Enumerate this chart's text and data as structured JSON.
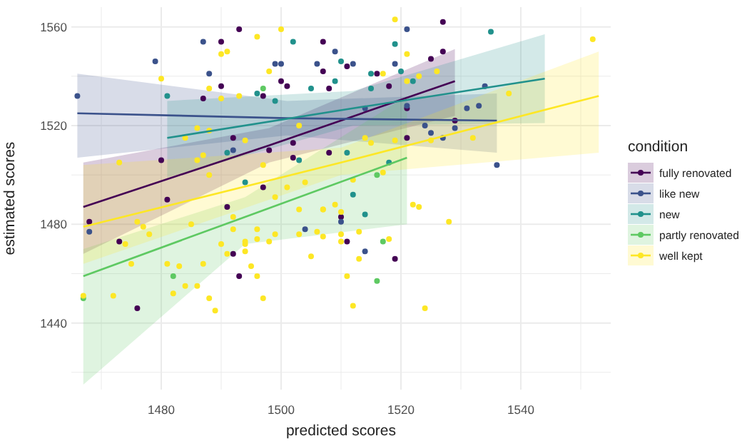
{
  "chart_data": {
    "type": "scatter",
    "xlabel": "predicted  scores",
    "ylabel": "estimated  scores",
    "legend_title": "condition",
    "legend": "right",
    "grid": true,
    "xlim": [
      1465,
      1555
    ],
    "ylim": [
      1413,
      1568
    ],
    "xticks": [
      {
        "value": 1470,
        "label": null
      },
      1480,
      {
        "value": 1490,
        "label": null
      },
      1500,
      {
        "value": 1510,
        "label": null
      },
      1520,
      {
        "value": 1530,
        "label": null
      },
      1540,
      {
        "value": 1550,
        "label": null
      }
    ],
    "yticks": [
      {
        "value": 1420,
        "label": null
      },
      1440,
      {
        "value": 1460,
        "label": null
      },
      1480,
      {
        "value": 1500,
        "label": null
      },
      1520,
      {
        "value": 1540,
        "label": null
      },
      1560
    ],
    "series": [
      {
        "type": "line",
        "color": "#440154",
        "x": [
          1467,
          1498,
          1529
        ],
        "values": [
          1487,
          1512,
          1538
        ],
        "lower": [
          1468,
          1505,
          1524
        ],
        "upper": [
          1505,
          1519,
          1551
        ]
      },
      {
        "type": "line",
        "color": "#3b528b",
        "x": [
          1466,
          1501,
          1536
        ],
        "values": [
          1525,
          1523,
          1522
        ],
        "lower": [
          1507,
          1516,
          1509
        ],
        "upper": [
          1541,
          1530,
          1533
        ]
      },
      {
        "type": "line",
        "color": "#21918c",
        "x": [
          1481,
          1512,
          1544
        ],
        "values": [
          1515,
          1527,
          1539
        ],
        "lower": [
          1499,
          1520,
          1521
        ],
        "upper": [
          1530,
          1534,
          1557
        ]
      },
      {
        "type": "line",
        "color": "#5ec962",
        "x": [
          1467,
          1494,
          1521
        ],
        "values": [
          1459,
          1483,
          1507
        ],
        "lower": [
          1415,
          1472,
          1480
        ],
        "upper": [
          1470,
          1491,
          1532
        ]
      },
      {
        "type": "line",
        "color": "#fde725",
        "x": [
          1467,
          1510,
          1553
        ],
        "values": [
          1479,
          1505,
          1532
        ],
        "lower": [
          1464,
          1500,
          1509
        ],
        "upper": [
          1504,
          1511,
          1550
        ]
      },
      {
        "type": "scatter",
        "name": "fully renovated",
        "color": "#440154",
        "marker": "circle",
        "x": [
          1490,
          1490,
          1493,
          1487,
          1497,
          1500,
          1501,
          1507,
          1507,
          1511,
          1508,
          1480,
          1492,
          1481,
          1497,
          1498,
          1502,
          1502,
          1508,
          1510,
          1527,
          1527,
          1525,
          1516,
          1518,
          1521,
          1529,
          1521,
          1468,
          1476,
          1473,
          1491,
          1492,
          1493,
          1511,
          1519
        ],
        "values": [
          1554,
          1536,
          1559,
          1531,
          1532,
          1538,
          1536,
          1554,
          1542,
          1544,
          1535,
          1506,
          1515,
          1490,
          1495,
          1510,
          1513,
          1507,
          1509,
          1483,
          1562,
          1550,
          1547,
          1541,
          1536,
          1527,
          1522,
          1515,
          1481,
          1446,
          1473,
          1487,
          1468,
          1459,
          1473,
          1466
        ]
      },
      {
        "type": "scatter",
        "name": "like new",
        "color": "#3b528b",
        "marker": "circle",
        "x": [
          1466,
          1479,
          1487,
          1488,
          1499,
          1500,
          1492,
          1506,
          1509,
          1512,
          1521,
          1519,
          1534,
          1514,
          1521,
          1531,
          1533,
          1524,
          1529,
          1525,
          1527,
          1536,
          1468,
          1504,
          1510,
          1514
        ],
        "values": [
          1532,
          1546,
          1554,
          1541,
          1545,
          1545,
          1510,
          1545,
          1550,
          1545,
          1559,
          1545,
          1536,
          1527,
          1528,
          1527,
          1528,
          1520,
          1519,
          1517,
          1515,
          1504,
          1477,
          1478,
          1481,
          1469
        ]
      },
      {
        "type": "scatter",
        "name": "new",
        "color": "#21918c",
        "marker": "circle",
        "x": [
          1481,
          1496,
          1499,
          1502,
          1505,
          1510,
          1509,
          1515,
          1491,
          1494,
          1503,
          1512,
          1511,
          1535,
          1519,
          1520,
          1515,
          1522,
          1518,
          1514
        ],
        "values": [
          1532,
          1533,
          1530,
          1554,
          1535,
          1546,
          1538,
          1535,
          1509,
          1497,
          1506,
          1492,
          1509,
          1558,
          1553,
          1542,
          1541,
          1538,
          1505,
          1484
        ]
      },
      {
        "type": "scatter",
        "name": "partly renovated",
        "color": "#5ec962",
        "marker": "circle",
        "x": [
          1497,
          1516,
          1467,
          1482,
          1516,
          1517
        ],
        "values": [
          1535,
          1500,
          1450,
          1459,
          1457,
          1473
        ]
      },
      {
        "type": "scatter",
        "name": "well kept",
        "color": "#fde725",
        "marker": "circle",
        "x": [
          1480,
          1490,
          1491,
          1496,
          1500,
          1498,
          1488,
          1490,
          1493,
          1473,
          1484,
          1486,
          1488,
          1487,
          1486,
          1488,
          1494,
          1497,
          1501,
          1504,
          1503,
          1509,
          1510,
          1512,
          1514,
          1492,
          1499,
          1507,
          1519,
          1552,
          1521,
          1523,
          1526,
          1517,
          1521,
          1538,
          1532,
          1519,
          1525,
          1515,
          1517,
          1522,
          1523,
          1528,
          1467,
          1472,
          1474,
          1475,
          1477,
          1478,
          1476,
          1481,
          1482,
          1484,
          1483,
          1485,
          1486,
          1487,
          1488,
          1489,
          1490,
          1491,
          1492,
          1494,
          1494,
          1494,
          1495,
          1496,
          1496,
          1496,
          1497,
          1498,
          1499,
          1503,
          1503,
          1505,
          1506,
          1507,
          1507,
          1510,
          1510,
          1511,
          1512,
          1513,
          1513,
          1518,
          1524
        ],
        "values": [
          1539,
          1549,
          1550,
          1556,
          1559,
          1542,
          1535,
          1531,
          1532,
          1505,
          1515,
          1519,
          1518,
          1508,
          1506,
          1500,
          1514,
          1504,
          1495,
          1497,
          1520,
          1488,
          1485,
          1498,
          1515,
          1483,
          1491,
          1486,
          1563,
          1555,
          1549,
          1540,
          1542,
          1541,
          1538,
          1533,
          1515,
          1514,
          1514,
          1513,
          1501,
          1488,
          1487,
          1481,
          1451,
          1451,
          1472,
          1464,
          1479,
          1476,
          1481,
          1464,
          1452,
          1455,
          1463,
          1480,
          1455,
          1464,
          1450,
          1445,
          1472,
          1468,
          1478,
          1472,
          1473,
          1469,
          1463,
          1459,
          1478,
          1474,
          1450,
          1473,
          1476,
          1486,
          1476,
          1467,
          1477,
          1486,
          1475,
          1473,
          1476,
          1459,
          1447,
          1466,
          1477,
          1474,
          1446
        ]
      }
    ]
  }
}
